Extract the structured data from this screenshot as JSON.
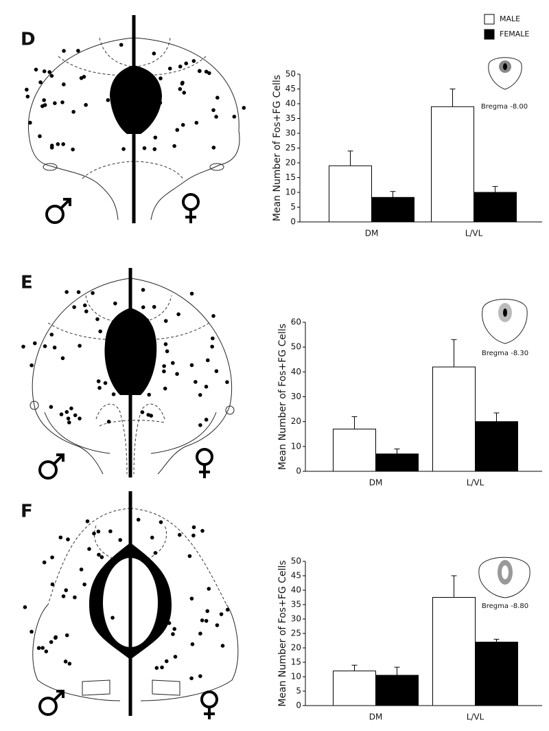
{
  "chart_data": [
    {
      "type": "bar",
      "label": "D",
      "ylabel": "Mean Number of Fos+FG Cells",
      "annotation": "Bregma -8.00",
      "categories": [
        "DM",
        "L/VL"
      ],
      "legend": "top-right",
      "series": [
        {
          "name": "MALE",
          "color": "#ffffff",
          "values": [
            19,
            39
          ],
          "errors": [
            5,
            6
          ]
        },
        {
          "name": "FEMALE",
          "color": "#000000",
          "values": [
            8.3,
            10
          ],
          "errors": [
            2,
            2
          ]
        }
      ],
      "ylim": [
        0,
        50
      ],
      "yticks": [
        0,
        5,
        10,
        15,
        20,
        25,
        30,
        35,
        40,
        45,
        50
      ]
    },
    {
      "type": "bar",
      "label": "E",
      "ylabel": "Mean Number of Fos+FG Cells",
      "annotation": "Bregma -8.30",
      "categories": [
        "DM",
        "L/VL"
      ],
      "series": [
        {
          "name": "MALE",
          "color": "#ffffff",
          "values": [
            17,
            42
          ],
          "errors": [
            5,
            11
          ]
        },
        {
          "name": "FEMALE",
          "color": "#000000",
          "values": [
            7,
            20
          ],
          "errors": [
            2,
            3.5
          ]
        }
      ],
      "ylim": [
        0,
        60
      ],
      "yticks": [
        0,
        10,
        20,
        30,
        40,
        50,
        60
      ]
    },
    {
      "type": "bar",
      "label": "F",
      "ylabel": "Mean Number of Fos+FG Cells",
      "annotation": "Bregma -8.80",
      "categories": [
        "DM",
        "L/VL"
      ],
      "series": [
        {
          "name": "MALE",
          "color": "#ffffff",
          "values": [
            12,
            37.5
          ],
          "errors": [
            2,
            7.5
          ]
        },
        {
          "name": "FEMALE",
          "color": "#000000",
          "values": [
            10.5,
            22
          ],
          "errors": [
            2.8,
            1
          ]
        }
      ],
      "ylim": [
        0,
        50
      ],
      "yticks": [
        0,
        5,
        10,
        15,
        20,
        25,
        30,
        35,
        40,
        45,
        50
      ]
    }
  ]
}
